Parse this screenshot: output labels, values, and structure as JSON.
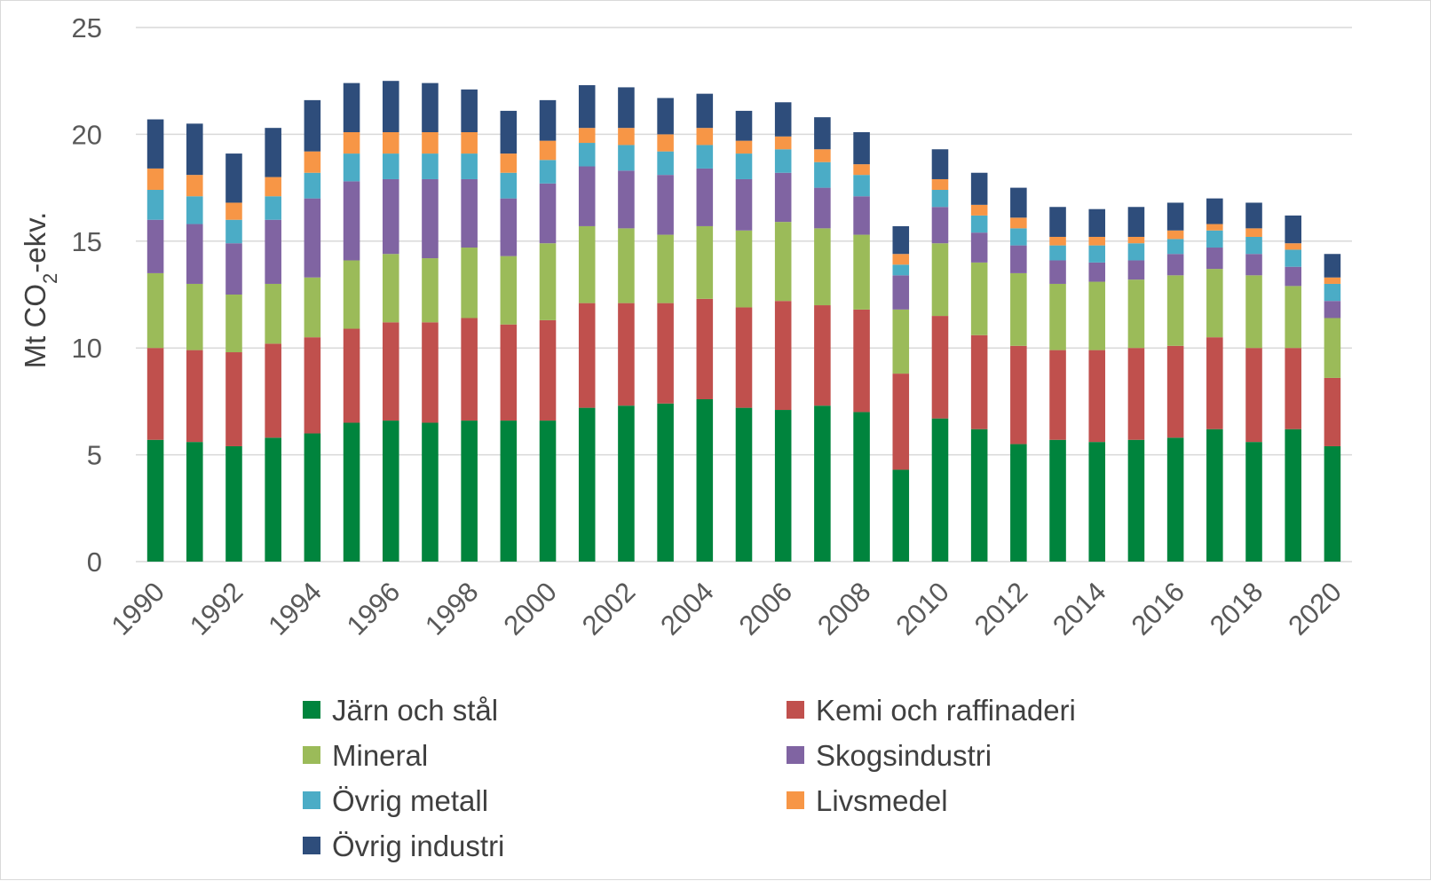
{
  "chart_data": {
    "type": "bar",
    "stacked": true,
    "title": "",
    "xlabel": "",
    "ylabel": "Mt CO",
    "ylabel_subscript": "2",
    "ylabel_suffix": "-ekv.",
    "ylim": [
      0,
      25
    ],
    "yticks": [
      0,
      5,
      10,
      15,
      20,
      25
    ],
    "grid": true,
    "legend_position": "bottom",
    "categories": [
      "1990",
      "1991",
      "1992",
      "1993",
      "1994",
      "1995",
      "1996",
      "1997",
      "1998",
      "1999",
      "2000",
      "2001",
      "2002",
      "2003",
      "2004",
      "2005",
      "2006",
      "2007",
      "2008",
      "2009",
      "2010",
      "2011",
      "2012",
      "2013",
      "2014",
      "2015",
      "2016",
      "2017",
      "2018",
      "2019",
      "2020"
    ],
    "xtick_labels": [
      "1990",
      "1992",
      "1994",
      "1996",
      "1998",
      "2000",
      "2002",
      "2004",
      "2006",
      "2008",
      "2010",
      "2012",
      "2014",
      "2016",
      "2018",
      "2020"
    ],
    "series": [
      {
        "name": "Järn och stål",
        "color": "#00843D",
        "values": [
          5.7,
          5.6,
          5.4,
          5.8,
          6.0,
          6.5,
          6.6,
          6.5,
          6.6,
          6.6,
          6.6,
          7.2,
          7.3,
          7.4,
          7.6,
          7.2,
          7.1,
          7.3,
          7.0,
          4.3,
          6.7,
          6.2,
          5.5,
          5.7,
          5.6,
          5.7,
          5.8,
          6.2,
          5.6,
          6.2,
          5.4
        ]
      },
      {
        "name": "Kemi och raffinaderi",
        "color": "#C0504D",
        "values": [
          4.3,
          4.3,
          4.4,
          4.4,
          4.5,
          4.4,
          4.6,
          4.7,
          4.8,
          4.5,
          4.7,
          4.9,
          4.8,
          4.7,
          4.7,
          4.7,
          5.1,
          4.7,
          4.8,
          4.5,
          4.8,
          4.4,
          4.6,
          4.2,
          4.3,
          4.3,
          4.3,
          4.3,
          4.4,
          3.8,
          3.2
        ]
      },
      {
        "name": "Mineral",
        "color": "#9BBB59",
        "values": [
          3.5,
          3.1,
          2.7,
          2.8,
          2.8,
          3.2,
          3.2,
          3.0,
          3.3,
          3.2,
          3.6,
          3.6,
          3.5,
          3.2,
          3.4,
          3.6,
          3.7,
          3.6,
          3.5,
          3.0,
          3.4,
          3.4,
          3.4,
          3.1,
          3.2,
          3.2,
          3.3,
          3.2,
          3.4,
          2.9,
          2.8
        ]
      },
      {
        "name": "Skogsindustri",
        "color": "#8064A2",
        "values": [
          2.5,
          2.8,
          2.4,
          3.0,
          3.7,
          3.7,
          3.5,
          3.7,
          3.2,
          2.7,
          2.8,
          2.8,
          2.7,
          2.8,
          2.7,
          2.4,
          2.3,
          1.9,
          1.8,
          1.6,
          1.7,
          1.4,
          1.3,
          1.1,
          0.9,
          0.9,
          1.0,
          1.0,
          1.0,
          0.9,
          0.8
        ]
      },
      {
        "name": "Övrig metall",
        "color": "#4BACC6",
        "values": [
          1.4,
          1.3,
          1.1,
          1.1,
          1.2,
          1.3,
          1.2,
          1.2,
          1.2,
          1.2,
          1.1,
          1.1,
          1.2,
          1.1,
          1.1,
          1.2,
          1.1,
          1.2,
          1.0,
          0.5,
          0.8,
          0.8,
          0.8,
          0.7,
          0.8,
          0.8,
          0.7,
          0.8,
          0.8,
          0.8,
          0.8
        ]
      },
      {
        "name": "Livsmedel",
        "color": "#F79646",
        "values": [
          1.0,
          1.0,
          0.8,
          0.9,
          1.0,
          1.0,
          1.0,
          1.0,
          1.0,
          0.9,
          0.9,
          0.7,
          0.8,
          0.8,
          0.8,
          0.6,
          0.6,
          0.6,
          0.5,
          0.5,
          0.5,
          0.5,
          0.5,
          0.4,
          0.4,
          0.3,
          0.4,
          0.3,
          0.4,
          0.3,
          0.3
        ]
      },
      {
        "name": "Övrig industri",
        "color": "#2E4D7B",
        "values": [
          2.3,
          2.4,
          2.3,
          2.3,
          2.4,
          2.3,
          2.4,
          2.3,
          2.0,
          2.0,
          1.9,
          2.0,
          1.9,
          1.7,
          1.6,
          1.4,
          1.6,
          1.5,
          1.5,
          1.3,
          1.4,
          1.5,
          1.4,
          1.4,
          1.3,
          1.4,
          1.3,
          1.2,
          1.2,
          1.3,
          1.1
        ]
      }
    ]
  }
}
